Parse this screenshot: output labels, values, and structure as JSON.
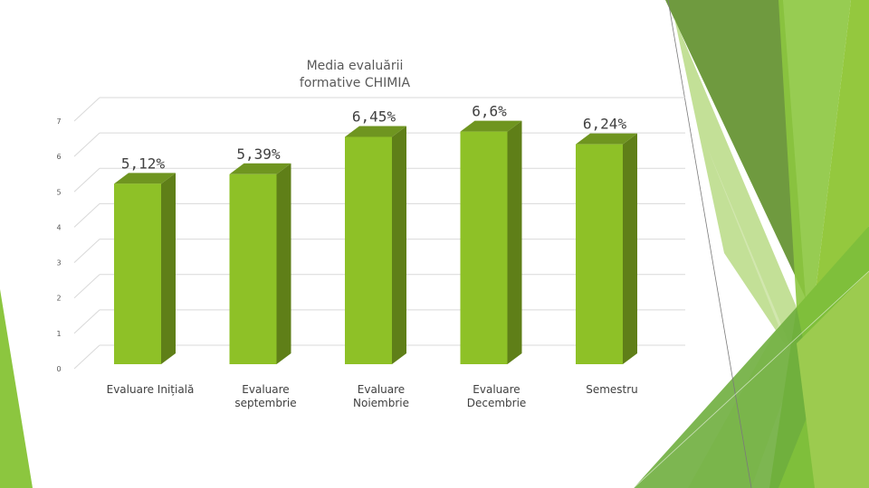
{
  "chart_data": {
    "type": "bar",
    "title_lines": [
      "Media evaluării",
      "formative CHIMIA"
    ],
    "categories": [
      [
        "Evaluare Inițială"
      ],
      [
        "Evaluare",
        "septembrie"
      ],
      [
        "Evaluare",
        "Noiembrie"
      ],
      [
        "Evaluare",
        "Decembrie"
      ],
      [
        "Semestru"
      ]
    ],
    "values": [
      5.12,
      5.39,
      6.45,
      6.6,
      6.24
    ],
    "data_labels": [
      "5,12%",
      "5,39%",
      "6,45%",
      "6,6%",
      "6,24%"
    ],
    "ylim": [
      0,
      7
    ],
    "yticks": [
      "0",
      "1",
      "2",
      "3",
      "4",
      "5",
      "6",
      "7"
    ],
    "grid": true,
    "legend": "none",
    "colors": {
      "bar_front": "#8ec127",
      "bar_side": "#5f7f18",
      "bar_top": "#6f9520",
      "grid": "#d9d9d9"
    }
  }
}
